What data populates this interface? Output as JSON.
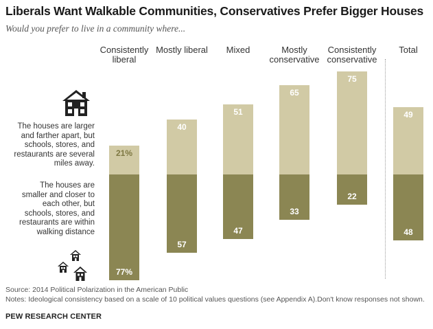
{
  "title": "Liberals Want Walkable Communities, Conservatives Prefer Bigger Houses",
  "subtitle": "Would you prefer to live in a community where...",
  "chart_data": {
    "type": "bar",
    "stacked": true,
    "categories": [
      "Consistently liberal",
      "Mostly liberal",
      "Mixed",
      "Mostly conservative",
      "Consistently conservative",
      "Total"
    ],
    "series": [
      {
        "name": "The houses are smaller and closer to each other, but schools, stores, and restaurants are within walking distance",
        "values": [
          77,
          57,
          47,
          33,
          22,
          48
        ],
        "labels": [
          "77%",
          "57",
          "47",
          "33",
          "22",
          "48"
        ],
        "color": "#8b8653"
      },
      {
        "name": "The houses are larger and farther apart, but schools, stores, and restaurants are several miles away.",
        "values": [
          21,
          40,
          51,
          65,
          75,
          49
        ],
        "labels": [
          "21%",
          "40",
          "51",
          "65",
          "75",
          "49"
        ],
        "color": "#d1caa5"
      }
    ]
  },
  "source": "Source: 2014 Political Polarization in the American Public",
  "notes": "Notes:  Ideological consistency based on a scale of 10 political values questions (see Appendix A).Don't know responses not shown.",
  "brand": "PEW RESEARCH CENTER",
  "icons": [
    "large-house-icon",
    "small-houses-icon"
  ]
}
